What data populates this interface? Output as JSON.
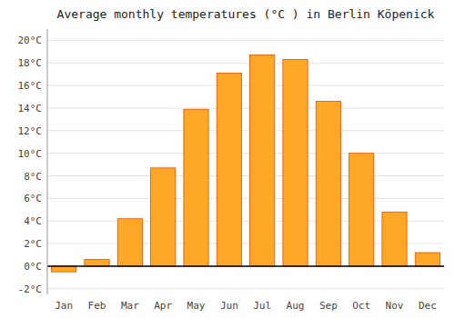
{
  "chart_data": {
    "type": "bar",
    "title": "Average monthly temperatures (°C ) in Berlin Köpenick",
    "categories": [
      "Jan",
      "Feb",
      "Mar",
      "Apr",
      "May",
      "Jun",
      "Jul",
      "Aug",
      "Sep",
      "Oct",
      "Nov",
      "Dec"
    ],
    "values": [
      -0.5,
      0.6,
      4.2,
      8.7,
      13.9,
      17.1,
      18.7,
      18.3,
      14.6,
      10.0,
      4.8,
      1.2
    ],
    "color": "#FFA726",
    "ylim": [
      -2.5,
      21
    ],
    "yticks": [
      {
        "value": -2,
        "label": "-2°C"
      },
      {
        "value": 0,
        "label": "0°C"
      },
      {
        "value": 2,
        "label": "2°C"
      },
      {
        "value": 4,
        "label": "4°C"
      },
      {
        "value": 6,
        "label": "6°C"
      },
      {
        "value": 8,
        "label": "8°C"
      },
      {
        "value": 10,
        "label": "10°C"
      },
      {
        "value": 12,
        "label": "12°C"
      },
      {
        "value": 14,
        "label": "14°C"
      },
      {
        "value": 16,
        "label": "16°C"
      },
      {
        "value": 18,
        "label": "18°C"
      },
      {
        "value": 20,
        "label": "20°C"
      }
    ],
    "grid": true
  }
}
